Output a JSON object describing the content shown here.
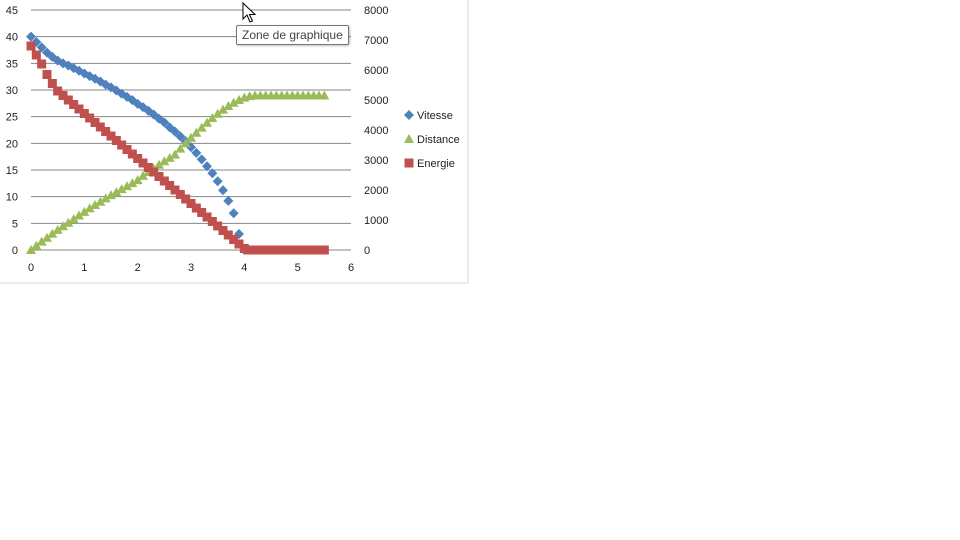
{
  "tooltip": {
    "text": "Zone de graphique"
  },
  "icons": {
    "cursor": "mouse-pointer-icon"
  },
  "chart_data": {
    "type": "scatter",
    "title": "",
    "xlabel": "",
    "ylabel": "",
    "y2label": "",
    "xlim": [
      0,
      6
    ],
    "ylim": [
      0,
      45
    ],
    "y2lim": [
      0,
      8000
    ],
    "xticks": [
      "0",
      "1",
      "2",
      "3",
      "4",
      "5",
      "6"
    ],
    "yticks": [
      "0",
      "5",
      "10",
      "15",
      "20",
      "25",
      "30",
      "35",
      "40",
      "45"
    ],
    "y2ticks": [
      "0",
      "1000",
      "2000",
      "3000",
      "4000",
      "5000",
      "6000",
      "7000",
      "8000"
    ],
    "grid": "horizontal",
    "legend_position": "right",
    "series": [
      {
        "name": "Vitesse",
        "axis": "left",
        "marker": "diamond",
        "color": "#4F81BD",
        "x": [
          0,
          0.1,
          0.2,
          0.3,
          0.4,
          0.5,
          0.6,
          0.7,
          0.8,
          0.9,
          1.0,
          1.1,
          1.2,
          1.3,
          1.4,
          1.5,
          1.6,
          1.7,
          1.8,
          1.9,
          2.0,
          2.1,
          2.2,
          2.3,
          2.4,
          2.5,
          2.6,
          2.7,
          2.8,
          2.9,
          3.0,
          3.1,
          3.2,
          3.3,
          3.4,
          3.5,
          3.6,
          3.7,
          3.8,
          3.9,
          4.0
        ],
        "y": [
          40.0,
          39.0,
          38.0,
          37.0,
          36.2,
          35.5,
          35.0,
          34.6,
          34.1,
          33.6,
          33.1,
          32.6,
          32.1,
          31.6,
          31.0,
          30.5,
          29.9,
          29.3,
          28.7,
          28.1,
          27.4,
          26.8,
          26.1,
          25.4,
          24.6,
          23.9,
          23.0,
          22.2,
          21.3,
          20.4,
          19.3,
          18.2,
          17.0,
          15.7,
          14.4,
          12.9,
          11.2,
          9.2,
          6.9,
          3.0,
          0.0
        ]
      },
      {
        "name": "Distance",
        "axis": "right",
        "marker": "triangle",
        "color": "#9BBB59",
        "x": [
          0,
          0.1,
          0.2,
          0.3,
          0.4,
          0.5,
          0.6,
          0.7,
          0.8,
          0.9,
          1.0,
          1.1,
          1.2,
          1.3,
          1.4,
          1.5,
          1.6,
          1.7,
          1.8,
          1.9,
          2.0,
          2.1,
          2.2,
          2.3,
          2.4,
          2.5,
          2.6,
          2.7,
          2.8,
          2.9,
          3.0,
          3.1,
          3.2,
          3.3,
          3.4,
          3.5,
          3.6,
          3.7,
          3.8,
          3.9,
          4.0,
          4.1,
          4.2,
          4.3,
          4.4,
          4.5,
          4.6,
          4.7,
          4.8,
          4.9,
          5.0,
          5.1,
          5.2,
          5.3,
          5.4,
          5.5
        ],
        "y": [
          0,
          140,
          280,
          410,
          540,
          670,
          790,
          910,
          1030,
          1150,
          1270,
          1390,
          1500,
          1610,
          1720,
          1830,
          1930,
          2030,
          2130,
          2230,
          2330,
          2470,
          2600,
          2720,
          2840,
          2960,
          3070,
          3180,
          3380,
          3560,
          3740,
          3910,
          4080,
          4240,
          4400,
          4540,
          4680,
          4800,
          4910,
          5000,
          5080,
          5130,
          5150,
          5150,
          5150,
          5150,
          5150,
          5150,
          5150,
          5150,
          5150,
          5150,
          5150,
          5150,
          5150,
          5150
        ]
      },
      {
        "name": "Energie",
        "axis": "right",
        "marker": "square",
        "color": "#C0504D",
        "x": [
          0,
          0.1,
          0.2,
          0.3,
          0.4,
          0.5,
          0.6,
          0.7,
          0.8,
          0.9,
          1.0,
          1.1,
          1.2,
          1.3,
          1.4,
          1.5,
          1.6,
          1.7,
          1.8,
          1.9,
          2.0,
          2.1,
          2.2,
          2.3,
          2.4,
          2.5,
          2.6,
          2.7,
          2.8,
          2.9,
          3.0,
          3.1,
          3.2,
          3.3,
          3.4,
          3.5,
          3.6,
          3.7,
          3.8,
          3.9,
          4.0,
          4.1,
          4.2,
          4.3,
          4.4,
          4.5,
          4.6,
          4.7,
          4.8,
          4.9,
          5.0,
          5.1,
          5.2,
          5.3,
          5.4,
          5.5
        ],
        "y": [
          6800,
          6500,
          6200,
          5850,
          5550,
          5300,
          5150,
          5000,
          4850,
          4700,
          4550,
          4400,
          4250,
          4100,
          3950,
          3800,
          3650,
          3500,
          3350,
          3200,
          3050,
          2900,
          2750,
          2600,
          2450,
          2300,
          2150,
          2000,
          1850,
          1700,
          1550,
          1400,
          1250,
          1100,
          950,
          800,
          650,
          500,
          350,
          200,
          50,
          0,
          0,
          0,
          0,
          0,
          0,
          0,
          0,
          0,
          0,
          0,
          0,
          0,
          0,
          0
        ]
      }
    ]
  }
}
